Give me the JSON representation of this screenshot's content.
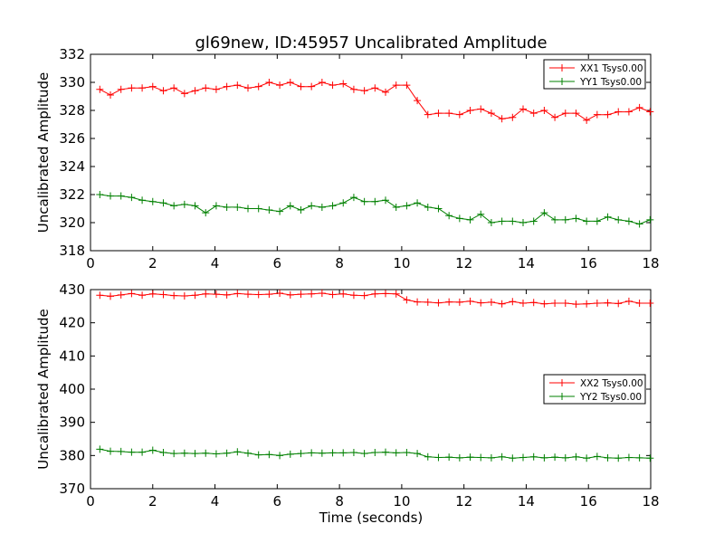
{
  "figure": {
    "title": "gl69new, ID:45957 Uncalibrated Amplitude",
    "xlabel": "Time (seconds)"
  },
  "chart_data": [
    {
      "type": "line",
      "ylabel": "Uncalibrated Amplitude",
      "xlim": [
        0,
        18
      ],
      "ylim": [
        318,
        332
      ],
      "xticks": [
        0,
        2,
        4,
        6,
        8,
        10,
        12,
        14,
        16,
        18
      ],
      "yticks": [
        318,
        320,
        322,
        324,
        326,
        328,
        330,
        332
      ],
      "legend_position": "top-right",
      "x": [
        0.3,
        0.64,
        0.98,
        1.32,
        1.66,
        2.0,
        2.34,
        2.68,
        3.02,
        3.36,
        3.7,
        4.04,
        4.38,
        4.72,
        5.06,
        5.4,
        5.74,
        6.08,
        6.42,
        6.76,
        7.1,
        7.44,
        7.78,
        8.12,
        8.46,
        8.8,
        9.14,
        9.48,
        9.82,
        10.16,
        10.5,
        10.84,
        11.18,
        11.52,
        11.86,
        12.2,
        12.54,
        12.88,
        13.22,
        13.56,
        13.9,
        14.24,
        14.58,
        14.92,
        15.26,
        15.6,
        15.94,
        16.28,
        16.62,
        16.96,
        17.3,
        17.64,
        17.98
      ],
      "series": [
        {
          "name": "XX1 Tsys0.00",
          "color": "#ff0000",
          "values": [
            329.5,
            329.1,
            329.5,
            329.6,
            329.6,
            329.7,
            329.4,
            329.6,
            329.2,
            329.4,
            329.6,
            329.5,
            329.7,
            329.8,
            329.6,
            329.7,
            330.0,
            329.8,
            330.0,
            329.7,
            329.7,
            330.0,
            329.8,
            329.9,
            329.5,
            329.4,
            329.6,
            329.3,
            329.8,
            329.8,
            328.7,
            327.7,
            327.8,
            327.8,
            327.7,
            328.0,
            328.1,
            327.8,
            327.4,
            327.5,
            328.1,
            327.8,
            328.0,
            327.5,
            327.8,
            327.8,
            327.3,
            327.7,
            327.7,
            327.9,
            327.9,
            328.2,
            327.9
          ]
        },
        {
          "name": "YY1 Tsys0.00",
          "color": "#008000",
          "values": [
            322.0,
            321.9,
            321.9,
            321.8,
            321.6,
            321.5,
            321.4,
            321.2,
            321.3,
            321.2,
            320.7,
            321.2,
            321.1,
            321.1,
            321.0,
            321.0,
            320.9,
            320.8,
            321.2,
            320.9,
            321.2,
            321.1,
            321.2,
            321.4,
            321.8,
            321.5,
            321.5,
            321.6,
            321.1,
            321.2,
            321.4,
            321.1,
            321.0,
            320.5,
            320.3,
            320.2,
            320.6,
            320.0,
            320.1,
            320.1,
            320.0,
            320.1,
            320.7,
            320.2,
            320.2,
            320.3,
            320.1,
            320.1,
            320.4,
            320.2,
            320.1,
            319.9,
            320.2
          ]
        }
      ]
    },
    {
      "type": "line",
      "ylabel": "Uncalibrated Amplitude",
      "xlabel": "Time (seconds)",
      "xlim": [
        0,
        18
      ],
      "ylim": [
        370,
        430
      ],
      "xticks": [
        0,
        2,
        4,
        6,
        8,
        10,
        12,
        14,
        16,
        18
      ],
      "yticks": [
        370,
        380,
        390,
        400,
        410,
        420,
        430
      ],
      "legend_position": "center-right",
      "x": [
        0.3,
        0.64,
        0.98,
        1.32,
        1.66,
        2.0,
        2.34,
        2.68,
        3.02,
        3.36,
        3.7,
        4.04,
        4.38,
        4.72,
        5.06,
        5.4,
        5.74,
        6.08,
        6.42,
        6.76,
        7.1,
        7.44,
        7.78,
        8.12,
        8.46,
        8.8,
        9.14,
        9.48,
        9.82,
        10.16,
        10.5,
        10.84,
        11.18,
        11.52,
        11.86,
        12.2,
        12.54,
        12.88,
        13.22,
        13.56,
        13.9,
        14.24,
        14.58,
        14.92,
        15.26,
        15.6,
        15.94,
        16.28,
        16.62,
        16.96,
        17.3,
        17.64,
        17.98
      ],
      "series": [
        {
          "name": "XX2 Tsys0.00",
          "color": "#ff0000",
          "values": [
            428.3,
            428.0,
            428.4,
            428.8,
            428.3,
            428.7,
            428.5,
            428.2,
            428.1,
            428.3,
            428.7,
            428.6,
            428.4,
            428.8,
            428.6,
            428.5,
            428.6,
            428.9,
            428.4,
            428.6,
            428.7,
            428.9,
            428.5,
            428.7,
            428.3,
            428.2,
            428.7,
            428.8,
            428.7,
            426.9,
            426.3,
            426.2,
            426.0,
            426.3,
            426.2,
            426.5,
            426.0,
            426.2,
            425.7,
            426.4,
            425.9,
            426.1,
            425.7,
            425.9,
            425.9,
            425.6,
            425.7,
            425.9,
            426.0,
            425.8,
            426.5,
            425.9,
            425.9
          ]
        },
        {
          "name": "YY2 Tsys0.00",
          "color": "#008000",
          "values": [
            381.9,
            381.3,
            381.2,
            381.0,
            381.0,
            381.6,
            380.9,
            380.6,
            380.7,
            380.6,
            380.7,
            380.5,
            380.7,
            381.1,
            380.7,
            380.2,
            380.3,
            380.0,
            380.4,
            380.6,
            380.8,
            380.7,
            380.8,
            380.8,
            380.9,
            380.6,
            380.9,
            381.0,
            380.8,
            380.9,
            380.6,
            379.6,
            379.4,
            379.5,
            379.3,
            379.5,
            379.4,
            379.3,
            379.6,
            379.2,
            379.4,
            379.6,
            379.3,
            379.5,
            379.3,
            379.6,
            379.2,
            379.7,
            379.3,
            379.2,
            379.4,
            379.3,
            379.2
          ]
        }
      ]
    }
  ]
}
